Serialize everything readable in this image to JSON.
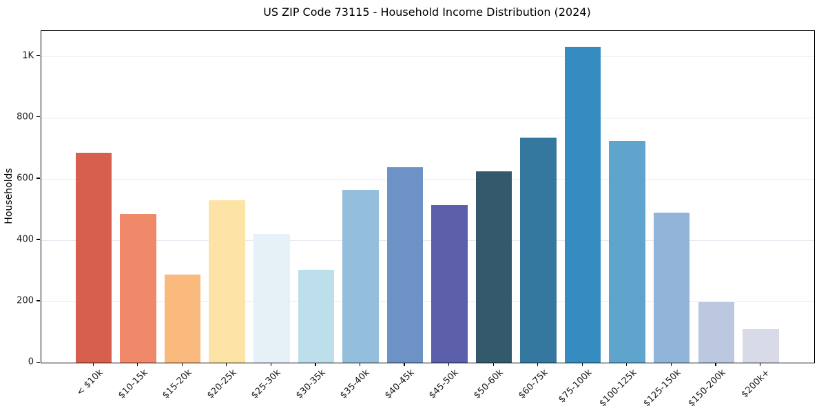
{
  "chart_data": {
    "type": "bar",
    "title": "US ZIP Code 73115 - Household Income Distribution (2024)",
    "ylabel": "Households",
    "xlabel": "",
    "categories": [
      "< $10k",
      "$10-15k",
      "$15-20k",
      "$20-25k",
      "$25-30k",
      "$30-35k",
      "$35-40k",
      "$40-45k",
      "$45-50k",
      "$50-60k",
      "$60-75k",
      "$75-100k",
      "$100-125k",
      "$125-150k",
      "$150-200k",
      "$200k+"
    ],
    "values": [
      685,
      485,
      288,
      530,
      419,
      303,
      564,
      637,
      515,
      625,
      733,
      1030,
      722,
      490,
      197,
      110
    ],
    "bar_colors": [
      "#d6604d",
      "#f0886a",
      "#fab97d",
      "#fde3a6",
      "#e5f1f7",
      "#bddfec",
      "#93bfdc",
      "#6d93c6",
      "#5c5fa9",
      "#34596c",
      "#35789f",
      "#358cc1",
      "#5fa4cc",
      "#91b4d8",
      "#bcc8e0",
      "#d8dae8"
    ],
    "ylim": [
      0,
      1082
    ],
    "yticks": [
      {
        "v": 0,
        "label": "0"
      },
      {
        "v": 200,
        "label": "200"
      },
      {
        "v": 400,
        "label": "400"
      },
      {
        "v": 600,
        "label": "600"
      },
      {
        "v": 800,
        "label": "800"
      },
      {
        "v": 1000,
        "label": "1K"
      }
    ],
    "grid": "horizontal",
    "legend": "none",
    "colors": {
      "text": "#1a1a1a",
      "spine": "#000000",
      "gridline": "#e9e9f1",
      "background": "#ffffff"
    }
  }
}
